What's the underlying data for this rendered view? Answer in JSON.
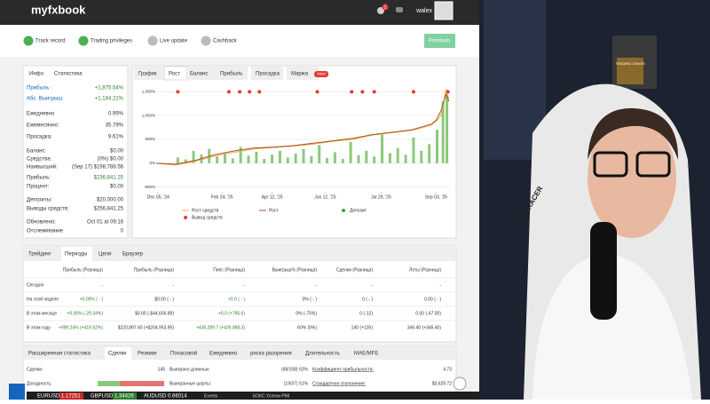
{
  "header": {
    "logo": "myfxbook",
    "notification_count": "1",
    "username": "walex"
  },
  "badges": [
    "Track record",
    "Trading privileges",
    "Live update",
    "Cashback"
  ],
  "premium_button": "Premium",
  "info_panel": {
    "tabs": [
      "Инфо",
      "Статистика"
    ],
    "rows": [
      [
        "Прибыль :",
        "+1,875.54%"
      ],
      [
        "Абс. Выигрыш:",
        "+1,184.21%"
      ],
      [
        "Ежедневно",
        "0.99%"
      ],
      [
        "Ежемесячно:",
        "35.79%"
      ],
      [
        "Просадка:",
        "9.61%"
      ],
      [
        "Баланс:",
        "$0.00"
      ],
      [
        "Средства:",
        "(0%) $0.00"
      ],
      [
        "Наивысший:",
        "(Sep 17) $198,788.56"
      ],
      [
        "Прибыль:",
        "$236,841.25"
      ],
      [
        "Процент:",
        "$0.00"
      ],
      [
        "Депозиты:",
        "$20,000.00"
      ],
      [
        "Выводы средств:",
        "$256,841.25"
      ],
      [
        "Обновлено:",
        "Oct 01 at 09:16"
      ],
      [
        "Отслеживание",
        "0"
      ]
    ]
  },
  "chart_data": {
    "type": "line",
    "tabs": [
      "График",
      "Рост",
      "Баланс",
      "Прибыль",
      "Просадка",
      "Маржа"
    ],
    "active_tab": 1,
    "new_badge": "New",
    "xlim": [
      0,
      300
    ],
    "xticks": [
      {
        "value": 2,
        "label": "Dec 05, '24"
      },
      {
        "value": 67,
        "label": "Feb 24, '25"
      },
      {
        "value": 118,
        "label": "Apr 12, '25"
      },
      {
        "value": 172,
        "label": "Jun 12, '25"
      },
      {
        "value": 229,
        "label": "Jul 29, '25"
      },
      {
        "value": 285,
        "label": "Sep 03, '25"
      }
    ],
    "ylim": [
      -600,
      1600
    ],
    "yticks": [
      {
        "value": 1500,
        "label": "1,500%"
      },
      {
        "value": 1000,
        "label": "1,000%"
      },
      {
        "value": 500,
        "label": "500%"
      },
      {
        "value": 0,
        "label": "0%"
      },
      {
        "value": -500,
        "label": "-500%"
      }
    ],
    "grid": true,
    "x": [
      0,
      20,
      40,
      60,
      80,
      100,
      120,
      140,
      160,
      180,
      200,
      220,
      240,
      260,
      270,
      280,
      285,
      290,
      295,
      298
    ],
    "series": [
      {
        "name": "Рост средств",
        "color": "#f5b041",
        "values": [
          0,
          -40,
          40,
          150,
          230,
          300,
          330,
          360,
          400,
          460,
          500,
          590,
          640,
          690,
          740,
          800,
          880,
          1000,
          1550,
          1350
        ]
      },
      {
        "name": "Рост",
        "color": "#a0522d",
        "values": [
          0,
          -20,
          60,
          180,
          260,
          320,
          340,
          370,
          420,
          470,
          520,
          600,
          650,
          700,
          760,
          820,
          900,
          1100,
          1450,
          1300
        ]
      }
    ],
    "deposits": {
      "name": "Депозит",
      "color": "#43a047"
    },
    "withdrawals": {
      "name": "Вывод средств",
      "color": "#e53935",
      "x": [
        22,
        74,
        85,
        95,
        105,
        164,
        199,
        210,
        222,
        262,
        297
      ],
      "values": [
        1500,
        1500,
        1500,
        1500,
        1500,
        1500,
        1500,
        1500,
        1500,
        1500,
        1500
      ]
    },
    "bars": {
      "color": "#8bc97a",
      "x": [
        22,
        30,
        38,
        46,
        54,
        62,
        70,
        78,
        86,
        94,
        102,
        110,
        118,
        126,
        134,
        142,
        150,
        158,
        166,
        174,
        182,
        190,
        198,
        206,
        214,
        222,
        230,
        238,
        246,
        254,
        262,
        270,
        278,
        286,
        292,
        296
      ],
      "values": [
        120,
        80,
        260,
        180,
        300,
        140,
        220,
        100,
        340,
        160,
        240,
        90,
        180,
        260,
        120,
        200,
        300,
        150,
        380,
        110,
        230,
        90,
        450,
        170,
        260,
        140,
        600,
        210,
        320,
        180,
        540,
        260,
        400,
        700,
        1300,
        1450
      ]
    }
  },
  "trading_table": {
    "tabs": [
      "Трейдинг",
      "Периоды",
      "Цели",
      "Браузер"
    ],
    "active_tab": 1,
    "header": [
      "Прибыль (Разница)",
      "Прибыль (Разница)",
      "Пипс (Разница)",
      "Выигрыш% (Разница)",
      "Сделки (Разница)",
      "Лоты (Разница)"
    ],
    "rows": [
      [
        "Сегодня",
        "-",
        "-",
        "-",
        "-",
        "-",
        "-"
      ],
      [
        "На этой неделе",
        "+0.00% ( - )",
        "$0.00 ( - )",
        "+0.0 ( - )",
        "0% ( - )",
        "0 ( - )",
        "0.00 ( - )"
      ],
      [
        "В этом месяце",
        "+0.00% (-29.34%)",
        "$0.00 (-$44,656.89)",
        "+0.0 (+795.6)",
        "0% (-75%)",
        "0 (-12)",
        "0.00 (-47.00)"
      ],
      [
        "В этом году",
        "+999.24% (+419.52%)",
        "$220,897.60 (+$204,953.95)",
        "+436,289.7 (+426,988.3)",
        "60% (0%)",
        "140 (+135)",
        "346.40 (+345.40)"
      ]
    ]
  },
  "stats_panel": {
    "tabs": [
      "Расширенная статистика",
      "Сделки",
      "Резюме",
      "Почасовой",
      "Ежедневно",
      "риска разорения",
      "Длительность",
      "MAE/MFE"
    ],
    "active_tab": 1,
    "rows": [
      [
        "Сделки:",
        "145",
        "Выиграно длинных:",
        "(68/108) 62%",
        "Коэффициент прибыльности:",
        "4.73"
      ],
      [
        "Доходность:",
        "",
        "Выигранные шорты:",
        "(19/37) 51%",
        "Стандартное отклонение:",
        "$3,629.72"
      ]
    ]
  },
  "ticker": [
    [
      "EURUSD",
      "1.17251"
    ],
    [
      "GBPUSD",
      "1.34426"
    ],
    [
      "AUDUSD",
      "0.66014"
    ]
  ],
  "ticker_extra": [
    "Events",
    "БОКС Успехи PMI"
  ],
  "webcam": {
    "chair_brand": "DXRACER",
    "book_title": "TRADING CHAOS"
  }
}
